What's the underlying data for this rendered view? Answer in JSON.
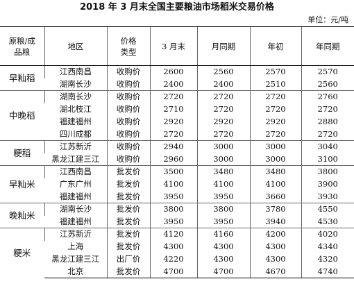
{
  "title": "2018 年 3 月末全国主要粮油市场稻米交易价格",
  "unit": "单位：元/吨",
  "columns": {
    "category": [
      "原粮/成",
      "品粮"
    ],
    "region": "地区",
    "price_type": [
      "价格",
      "类型"
    ],
    "end_of_march": "3 月末",
    "same_period_last_month": "月同期",
    "start_of_year": "年初",
    "same_period_last_year": "年同期"
  },
  "groups": [
    {
      "category": "早籼稻",
      "rows": [
        {
          "region": "江西南昌",
          "price_type": "收购价",
          "values": [
            "2600",
            "2560",
            "2570",
            "2570"
          ]
        },
        {
          "region": "湖南长沙",
          "price_type": "收购价",
          "values": [
            "2400",
            "2400",
            "2510",
            "2560"
          ]
        }
      ]
    },
    {
      "category": "中晚稻",
      "rows": [
        {
          "region": "湖南长沙",
          "price_type": "收购价",
          "values": [
            "2720",
            "2720",
            "2720",
            "2760"
          ]
        },
        {
          "region": "湖北枝江",
          "price_type": "收购价",
          "values": [
            "2710",
            "2720",
            "2720",
            "2720"
          ]
        },
        {
          "region": "福建福州",
          "price_type": "收购价",
          "values": [
            "2920",
            "2920",
            "2920",
            "2880"
          ]
        },
        {
          "region": "四川成都",
          "price_type": "收购价",
          "values": [
            "2720",
            "2720",
            "2720",
            "2720"
          ]
        }
      ]
    },
    {
      "category": "粳稻",
      "rows": [
        {
          "region": "江苏新沂",
          "price_type": "收购价",
          "values": [
            "2940",
            "3000",
            "3000",
            "3040"
          ]
        },
        {
          "region": "黑龙江建三江",
          "price_type": "收购价",
          "values": [
            "2960",
            "3000",
            "3000",
            "3100"
          ]
        }
      ]
    },
    {
      "category": "早籼米",
      "rows": [
        {
          "region": "江西南昌",
          "price_type": "批发价",
          "values": [
            "3500",
            "3480",
            "3480",
            "3800"
          ]
        },
        {
          "region": "广东广州",
          "price_type": "批发价",
          "values": [
            "4100",
            "4100",
            "4100",
            "3900"
          ]
        },
        {
          "region": "福建福州",
          "price_type": "批发价",
          "values": [
            "3950",
            "3950",
            "3660",
            "3930"
          ]
        }
      ]
    },
    {
      "category": "晚籼米",
      "rows": [
        {
          "region": "湖南长沙",
          "price_type": "批发价",
          "values": [
            "3800",
            "3800",
            "3780",
            "4550"
          ]
        },
        {
          "region": "福建福州",
          "price_type": "批发价",
          "values": [
            "3950",
            "3950",
            "3940",
            "4530"
          ]
        }
      ]
    },
    {
      "category": "粳米",
      "rows": [
        {
          "region": "江苏新沂",
          "price_type": "批发价",
          "values": [
            "4120",
            "4160",
            "4200",
            "4020"
          ]
        },
        {
          "region": "上海",
          "price_type": "批发价",
          "values": [
            "4300",
            "4300",
            "4300",
            "4340"
          ]
        },
        {
          "region": "黑龙江建三江",
          "price_type": "出厂价",
          "values": [
            "4220",
            "4300",
            "4300",
            "4320"
          ]
        },
        {
          "region": "北京",
          "price_type": "批发价",
          "values": [
            "4700",
            "4700",
            "4670",
            "4740"
          ]
        }
      ]
    }
  ]
}
